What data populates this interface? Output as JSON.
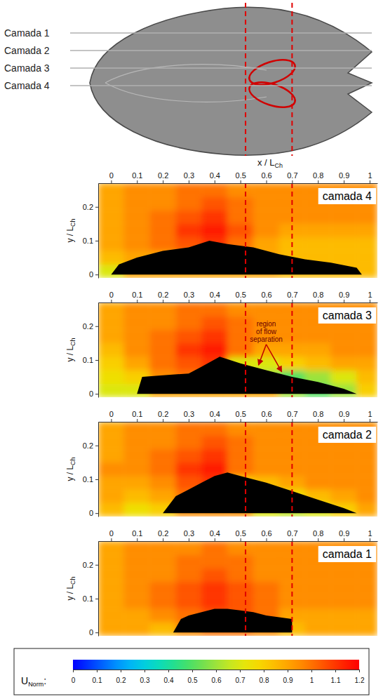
{
  "figure": {
    "planform": {
      "layers": [
        "Camada 1",
        "Camada 2",
        "Camada 3",
        "Camada 4"
      ]
    },
    "x_label": {
      "text": "x / L",
      "subscript": "Ch"
    },
    "reference_x": [
      0.52,
      0.7
    ],
    "colorbar": {
      "label": "U",
      "label_sub": "Norm",
      "label_suffix": ":",
      "range": [
        0,
        1.2
      ],
      "ticks": [
        0,
        0.1,
        0.2,
        0.3,
        0.4,
        0.5,
        0.6,
        0.7,
        0.8,
        0.9,
        1,
        1.1,
        1.2
      ]
    }
  },
  "chart_data": [
    {
      "type": "heatmap",
      "title": "camada 4",
      "y_label": {
        "text": "y / L",
        "subscript": "Ch"
      },
      "xlim": [
        -0.05,
        1.03
      ],
      "xticks": [
        0,
        0.1,
        0.2,
        0.3,
        0.4,
        0.5,
        0.6,
        0.7,
        0.8,
        0.9,
        1
      ],
      "ylim": [
        -0.01,
        0.27
      ],
      "yticks": [
        0,
        0.1,
        0.2
      ],
      "field": {
        "x_edges": [
          -0.05,
          0.05,
          0.15,
          0.25,
          0.35,
          0.45,
          0.55,
          0.65,
          0.75,
          0.85,
          0.95,
          1.03
        ],
        "y_edges": [
          -0.01,
          0.03,
          0.07,
          0.11,
          0.15,
          0.19,
          0.23,
          0.27
        ],
        "values": [
          [
            0.7,
            0.9,
            0.9,
            0.9,
            0.9,
            0.9,
            0.9,
            0.85,
            0.85,
            0.85,
            0.85
          ],
          [
            0.85,
            0.9,
            0.9,
            0.95,
            1.0,
            0.95,
            0.9,
            0.85,
            0.85,
            0.85,
            0.85
          ],
          [
            0.9,
            0.95,
            1.0,
            1.05,
            1.1,
            1.0,
            0.9,
            0.85,
            0.85,
            0.85,
            0.85
          ],
          [
            0.9,
            0.95,
            1.0,
            1.1,
            1.15,
            1.05,
            0.95,
            0.9,
            0.9,
            0.9,
            0.9
          ],
          [
            0.9,
            0.95,
            1.0,
            1.05,
            1.1,
            1.0,
            0.95,
            0.95,
            0.95,
            0.95,
            0.95
          ],
          [
            0.9,
            0.95,
            0.95,
            1.0,
            1.05,
            1.0,
            0.95,
            0.95,
            0.95,
            0.95,
            0.95
          ],
          [
            0.9,
            0.95,
            0.95,
            1.0,
            1.0,
            0.95,
            0.95,
            0.95,
            0.95,
            0.95,
            0.95
          ]
        ]
      },
      "body": {
        "x": [
          0,
          0.03,
          0.1,
          0.2,
          0.3,
          0.38,
          0.45,
          0.55,
          0.65,
          0.75,
          0.85,
          0.95,
          0.97
        ],
        "y": [
          0,
          0.03,
          0.05,
          0.07,
          0.08,
          0.1,
          0.09,
          0.08,
          0.06,
          0.045,
          0.035,
          0.02,
          0
        ]
      }
    },
    {
      "type": "heatmap",
      "title": "camada 3",
      "y_label": {
        "text": "y / L",
        "subscript": "Ch"
      },
      "xlim": [
        -0.05,
        1.03
      ],
      "xticks": [
        0,
        0.1,
        0.2,
        0.3,
        0.4,
        0.5,
        0.6,
        0.7,
        0.8,
        0.9,
        1
      ],
      "ylim": [
        -0.01,
        0.27
      ],
      "yticks": [
        0,
        0.1,
        0.2
      ],
      "field": {
        "x_edges": [
          -0.05,
          0.05,
          0.15,
          0.25,
          0.35,
          0.45,
          0.55,
          0.65,
          0.75,
          0.85,
          0.95,
          1.03
        ],
        "y_edges": [
          -0.01,
          0.03,
          0.07,
          0.11,
          0.15,
          0.19,
          0.23,
          0.27
        ],
        "values": [
          [
            0.7,
            0.7,
            0.9,
            0.9,
            0.9,
            0.9,
            0.9,
            0.6,
            0.5,
            0.6,
            0.8
          ],
          [
            0.75,
            0.8,
            0.95,
            1.0,
            1.05,
            1.0,
            0.6,
            0.5,
            0.6,
            0.7,
            0.85
          ],
          [
            0.8,
            0.9,
            1.0,
            1.05,
            1.1,
            0.7,
            0.7,
            0.8,
            0.85,
            0.9,
            0.9
          ],
          [
            0.85,
            0.95,
            1.0,
            1.1,
            1.15,
            1.0,
            0.9,
            0.9,
            0.9,
            0.95,
            0.95
          ],
          [
            0.9,
            0.95,
            1.0,
            1.05,
            1.1,
            1.0,
            0.95,
            0.95,
            0.95,
            0.95,
            0.95
          ],
          [
            0.9,
            0.95,
            0.95,
            1.0,
            1.05,
            1.0,
            0.95,
            0.95,
            0.95,
            0.95,
            0.95
          ],
          [
            0.9,
            0.95,
            0.95,
            1.0,
            1.0,
            0.95,
            0.95,
            0.95,
            0.95,
            0.95,
            0.95
          ]
        ]
      },
      "body": {
        "x": [
          0.1,
          0.12,
          0.2,
          0.3,
          0.35,
          0.42,
          0.5,
          0.6,
          0.7,
          0.8,
          0.9,
          0.95
        ],
        "y": [
          0,
          0.05,
          0.055,
          0.06,
          0.08,
          0.11,
          0.09,
          0.07,
          0.05,
          0.035,
          0.015,
          0
        ]
      },
      "annotations": [
        {
          "text": "region of flow separation",
          "x": 0.6,
          "y": 0.2,
          "arrows": [
            {
              "x": 0.57,
              "y": 0.085
            },
            {
              "x": 0.66,
              "y": 0.065
            }
          ]
        }
      ]
    },
    {
      "type": "heatmap",
      "title": "camada 2",
      "y_label": {
        "text": "y / L",
        "subscript": "Ch"
      },
      "xlim": [
        -0.05,
        1.03
      ],
      "xticks": [
        0,
        0.1,
        0.2,
        0.3,
        0.4,
        0.5,
        0.6,
        0.7,
        0.8,
        0.9,
        1
      ],
      "ylim": [
        -0.01,
        0.27
      ],
      "yticks": [
        0,
        0.1,
        0.2
      ],
      "field": {
        "x_edges": [
          -0.05,
          0.05,
          0.15,
          0.25,
          0.35,
          0.45,
          0.55,
          0.65,
          0.75,
          0.85,
          0.95,
          1.03
        ],
        "y_edges": [
          -0.01,
          0.03,
          0.07,
          0.11,
          0.15,
          0.19,
          0.23,
          0.27
        ],
        "values": [
          [
            0.85,
            0.75,
            0.8,
            0.95,
            0.95,
            0.95,
            0.7,
            0.65,
            0.7,
            0.8,
            0.9
          ],
          [
            0.9,
            0.85,
            0.9,
            1.0,
            1.05,
            0.95,
            0.7,
            0.75,
            0.85,
            0.9,
            0.95
          ],
          [
            0.9,
            0.9,
            0.95,
            1.05,
            1.1,
            0.8,
            0.85,
            0.9,
            0.95,
            0.95,
            0.95
          ],
          [
            0.95,
            0.95,
            1.0,
            1.1,
            1.15,
            1.0,
            0.95,
            0.95,
            0.95,
            0.95,
            0.95
          ],
          [
            0.9,
            0.95,
            1.0,
            1.05,
            1.1,
            1.0,
            0.95,
            0.95,
            0.95,
            0.95,
            0.95
          ],
          [
            0.9,
            0.95,
            0.95,
            1.0,
            1.05,
            1.0,
            0.95,
            0.95,
            0.95,
            0.95,
            0.95
          ],
          [
            0.9,
            0.95,
            0.95,
            1.0,
            1.0,
            0.95,
            0.95,
            0.95,
            0.95,
            0.95,
            0.95
          ]
        ]
      },
      "body": {
        "x": [
          0.2,
          0.25,
          0.3,
          0.35,
          0.4,
          0.45,
          0.5,
          0.6,
          0.7,
          0.8,
          0.9,
          0.95
        ],
        "y": [
          0,
          0.05,
          0.07,
          0.09,
          0.11,
          0.12,
          0.11,
          0.09,
          0.065,
          0.04,
          0.015,
          0
        ]
      }
    },
    {
      "type": "heatmap",
      "title": "camada 1",
      "y_label": {
        "text": "y / L",
        "subscript": "Ch"
      },
      "xlim": [
        -0.05,
        1.03
      ],
      "xticks": [
        0,
        0.1,
        0.2,
        0.3,
        0.4,
        0.5,
        0.6,
        0.7,
        0.8,
        0.9,
        1
      ],
      "ylim": [
        -0.01,
        0.27
      ],
      "yticks": [
        0,
        0.1,
        0.2
      ],
      "field": {
        "x_edges": [
          -0.05,
          0.05,
          0.15,
          0.25,
          0.35,
          0.45,
          0.55,
          0.65,
          0.75,
          0.85,
          0.95,
          1.03
        ],
        "y_edges": [
          -0.01,
          0.03,
          0.07,
          0.11,
          0.15,
          0.19,
          0.23,
          0.27
        ],
        "values": [
          [
            0.9,
            0.9,
            0.85,
            0.95,
            1.0,
            1.0,
            0.95,
            0.85,
            0.9,
            0.9,
            0.9
          ],
          [
            0.9,
            0.9,
            0.95,
            1.0,
            1.05,
            1.05,
            1.0,
            0.9,
            0.9,
            0.9,
            0.9
          ],
          [
            0.9,
            0.95,
            1.0,
            1.05,
            1.1,
            1.05,
            1.0,
            0.95,
            0.95,
            0.95,
            0.95
          ],
          [
            0.9,
            0.95,
            1.0,
            1.05,
            1.1,
            1.05,
            1.0,
            0.95,
            0.95,
            0.95,
            0.95
          ],
          [
            0.9,
            0.95,
            0.95,
            1.0,
            1.05,
            1.0,
            0.95,
            0.95,
            0.95,
            0.95,
            0.95
          ],
          [
            0.9,
            0.95,
            0.95,
            1.0,
            1.0,
            1.0,
            0.95,
            0.95,
            0.95,
            0.95,
            0.95
          ],
          [
            0.9,
            0.95,
            0.95,
            0.95,
            1.0,
            0.95,
            0.95,
            0.95,
            0.95,
            0.95,
            0.95
          ]
        ]
      },
      "body": {
        "x": [
          0.24,
          0.27,
          0.3,
          0.35,
          0.4,
          0.45,
          0.5,
          0.55,
          0.6,
          0.65,
          0.7,
          0.7
        ],
        "y": [
          0,
          0.04,
          0.05,
          0.06,
          0.07,
          0.07,
          0.065,
          0.06,
          0.05,
          0.045,
          0.04,
          0
        ]
      }
    }
  ]
}
